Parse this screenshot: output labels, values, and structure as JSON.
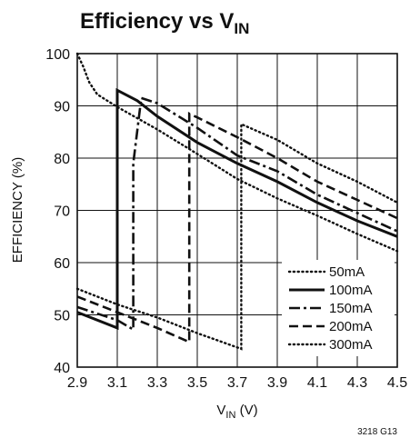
{
  "chart_data": {
    "type": "line",
    "title": "Efficiency vs V",
    "title_subscript": "IN",
    "xlabel_prefix": "V",
    "xlabel_subscript": "IN",
    "xlabel_suffix": " (V)",
    "ylabel": "EFFICIENCY (%)",
    "xlim": [
      2.9,
      4.5
    ],
    "ylim": [
      40,
      100
    ],
    "xticks": [
      2.9,
      3.1,
      3.3,
      3.5,
      3.7,
      3.9,
      4.1,
      4.3,
      4.5
    ],
    "yticks": [
      40,
      50,
      60,
      70,
      80,
      90,
      100
    ],
    "x_tick_labels": [
      "2.9",
      "3.1",
      "3.3",
      "3.5",
      "3.7",
      "3.9",
      "4.1",
      "4.3",
      "4.5"
    ],
    "y_tick_labels": [
      "40",
      "50",
      "60",
      "70",
      "80",
      "90",
      "100"
    ],
    "grid": true,
    "legend_position": "bottom-right",
    "footnote": "3218 G13",
    "series": [
      {
        "name": "50mA",
        "style": "dotted",
        "points": [
          [
            2.9,
            100
          ],
          [
            2.93,
            97.5
          ],
          [
            2.96,
            94.5
          ],
          [
            3.0,
            92.2
          ],
          [
            3.1,
            89.8
          ],
          [
            3.3,
            85.5
          ],
          [
            3.5,
            80.8
          ],
          [
            3.7,
            76
          ],
          [
            3.9,
            72.3
          ],
          [
            4.1,
            69
          ],
          [
            4.3,
            65.5
          ],
          [
            4.5,
            62.2
          ]
        ]
      },
      {
        "name": "100mA",
        "style": "solid",
        "points": [
          [
            2.9,
            50.5
          ],
          [
            3.1,
            47.5
          ],
          [
            3.1,
            93
          ],
          [
            3.2,
            91
          ],
          [
            3.3,
            88
          ],
          [
            3.5,
            83
          ],
          [
            3.7,
            79
          ],
          [
            3.9,
            75.5
          ],
          [
            4.1,
            71.5
          ],
          [
            4.3,
            68
          ],
          [
            4.5,
            65
          ]
        ]
      },
      {
        "name": "150mA",
        "style": "dashdot",
        "points": [
          [
            2.9,
            51.5
          ],
          [
            3.1,
            49
          ],
          [
            3.18,
            47.2
          ],
          [
            3.18,
            79
          ],
          [
            3.22,
            91.5
          ],
          [
            3.3,
            90.5
          ],
          [
            3.5,
            85.8
          ],
          [
            3.7,
            80.5
          ],
          [
            3.9,
            77.5
          ],
          [
            4.1,
            73
          ],
          [
            4.3,
            69.5
          ],
          [
            4.5,
            66
          ]
        ]
      },
      {
        "name": "200mA",
        "style": "dashed",
        "points": [
          [
            2.9,
            53.5
          ],
          [
            3.1,
            50.5
          ],
          [
            3.3,
            47.5
          ],
          [
            3.46,
            44.8
          ],
          [
            3.46,
            88.5
          ],
          [
            3.5,
            87.8
          ],
          [
            3.7,
            84
          ],
          [
            3.9,
            80
          ],
          [
            4.1,
            75.5
          ],
          [
            4.3,
            72
          ],
          [
            4.5,
            68.5
          ]
        ]
      },
      {
        "name": "300mA",
        "style": "dotted",
        "points": [
          [
            2.9,
            55
          ],
          [
            3.1,
            52
          ],
          [
            3.3,
            49.5
          ],
          [
            3.5,
            46.5
          ],
          [
            3.72,
            43.5
          ],
          [
            3.72,
            86.5
          ],
          [
            3.9,
            83.5
          ],
          [
            4.1,
            79
          ],
          [
            4.3,
            75.5
          ],
          [
            4.5,
            71.5
          ]
        ]
      }
    ]
  }
}
